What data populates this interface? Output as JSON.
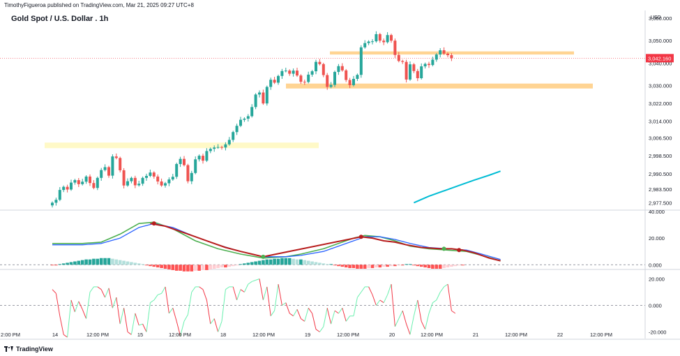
{
  "header": {
    "published": "TimothyFigueroa published on TradingView.com, Mar 21, 2025 09:27 UTC+8",
    "title": "Gold Spot / U.S. Dollar . 1h",
    "currency": "USD",
    "brand": "TradingView"
  },
  "colors": {
    "up": "#26a69a",
    "down": "#ef5350",
    "zone_orange": "#ffcc80",
    "zone_yellow": "#fff9c4",
    "ma_cyan": "#00bcd4",
    "dmi_green": "#4caf50",
    "dmi_blue": "#2962ff",
    "dmi_red": "#b71c1c",
    "osc_green": "#69f0ae",
    "osc_red": "#f23645",
    "price_tag": "#f23645"
  },
  "chart_data": [
    {
      "type": "candlestick",
      "ylim": [
        2974.5,
        3063.5
      ],
      "y_ticks": [
        "3,060.000",
        "3,050.000",
        "3,040.000",
        "3,030.000",
        "3,022.000",
        "3,014.000",
        "3,006.500",
        "2,998.500",
        "2,990.500",
        "2,983.500",
        "2,977.500"
      ],
      "last_price": "3,042.160",
      "x_ticks": [
        "2:00 PM",
        "14",
        "12:00 PM",
        "15",
        "12:00 PM",
        "18",
        "12:00 PM",
        "19",
        "12:00 PM",
        "20",
        "12:00 PM",
        "21",
        "12:00 PM",
        "22",
        "12:00 PM"
      ],
      "close": [
        2977.5,
        2978.8,
        2983.2,
        2984.6,
        2983.4,
        2986.5,
        2987.6,
        2985.8,
        2986.9,
        2989.2,
        2986.3,
        2984.1,
        2988.6,
        2992.1,
        2993.4,
        2989.6,
        2998.2,
        2997.5,
        2992.0,
        2985.2,
        2987.1,
        2988.6,
        2985.3,
        2986.0,
        2988.6,
        2989.5,
        2991.0,
        2989.2,
        2987.0,
        2985.2,
        2986.2,
        2987.9,
        2989.1,
        2994.8,
        2997.1,
        2994.3,
        2987.1,
        2990.8,
        2996.9,
        2998.5,
        2996.3,
        3000.6,
        3001.6,
        3002.2,
        3002.4,
        3002.2,
        3003.6,
        3005.6,
        3009.1,
        3011.9,
        3014.6,
        3015.1,
        3016.2,
        3020.3,
        3025.9,
        3026.8,
        3021.9,
        3029.3,
        3032.5,
        3031.2,
        3034.2,
        3036.4,
        3036.6,
        3035.2,
        3036.6,
        3034.4,
        3031.6,
        3031.5,
        3034.8,
        3036.3,
        3040.5,
        3039.5,
        3034.6,
        3029.3,
        3030.2,
        3036.0,
        3038.6,
        3036.7,
        3032.4,
        3030.1,
        3032.9,
        3034.7,
        3047.0,
        3048.9,
        3049.6,
        3049.7,
        3052.9,
        3050.0,
        3049.3,
        3052.5,
        3050.0,
        3043.6,
        3040.9,
        3040.5,
        3032.6,
        3039.4,
        3036.4,
        3033.2,
        3038.5,
        3039.6,
        3039.1,
        3041.5,
        3043.8,
        3045.7,
        3044.2,
        3043.5,
        3042.16
      ],
      "ma_line": [
        [
          96,
          2977.5
        ],
        [
          100,
          2980.4
        ],
        [
          104,
          2982.8
        ],
        [
          108,
          2985.2
        ],
        [
          112,
          2987.6
        ],
        [
          116,
          2989.8
        ],
        [
          119,
          2991.6
        ]
      ]
    },
    {
      "type": "line",
      "name_hint": "directional oscillator",
      "ylim": [
        -3,
        40
      ],
      "y_ticks": [
        "40.000",
        "20.000",
        "0.000"
      ],
      "series": [
        {
          "color": "#4caf50",
          "x": [
            0,
            8,
            13,
            18,
            23,
            27,
            32,
            38,
            44,
            50,
            56,
            62,
            66,
            72,
            76,
            80,
            83,
            87,
            91,
            95,
            100,
            105,
            110,
            114,
            119
          ],
          "values": [
            16,
            16,
            17,
            23,
            31,
            32,
            27,
            18,
            12,
            8,
            5,
            6,
            8,
            12,
            16,
            20,
            22,
            21,
            18,
            14,
            12,
            11,
            10,
            7,
            3
          ]
        },
        {
          "color": "#2962ff",
          "x": [
            0,
            8,
            13,
            18,
            23,
            27,
            32,
            38,
            44,
            50,
            56,
            62,
            66,
            72,
            76,
            80,
            83,
            87,
            91,
            95,
            100,
            105,
            110,
            114,
            119
          ],
          "values": [
            15,
            15,
            16,
            20,
            28,
            31,
            28,
            21,
            15,
            10,
            6,
            6,
            7,
            10,
            14,
            18,
            21,
            21,
            19,
            16,
            13,
            12,
            11,
            8,
            4
          ]
        },
        {
          "color": "#b71c1c",
          "x": [
            26,
            30,
            34,
            38,
            42,
            46,
            50,
            53,
            56,
            82,
            85,
            88,
            91,
            94,
            98,
            103,
            106,
            109,
            112,
            116,
            119
          ],
          "values": [
            31,
            29,
            25,
            21,
            17,
            13,
            10,
            8,
            6,
            21,
            20,
            18,
            17,
            15,
            13,
            12,
            12,
            11,
            9,
            5,
            3
          ]
        }
      ],
      "markers": [
        [
          27,
          31,
          "#b71c1c"
        ],
        [
          56,
          6,
          "#4caf50"
        ],
        [
          82,
          21,
          "#b71c1c"
        ],
        [
          104,
          12,
          "#4caf50"
        ],
        [
          108,
          11,
          "#b71c1c"
        ]
      ],
      "histogram": [
        -0.5,
        -0.5,
        0.5,
        1,
        1.5,
        2,
        2.5,
        3,
        3.5,
        4,
        4,
        4.5,
        4.5,
        5,
        5,
        5,
        4.5,
        4,
        3.5,
        3,
        2.5,
        2,
        1.5,
        1,
        0.5,
        -0.5,
        -1,
        -1.5,
        -2,
        -2.5,
        -3,
        -3.5,
        -4,
        -4.5,
        -4.5,
        -5,
        -5,
        -5,
        -4.5,
        -4.5,
        -4,
        -4,
        -3.5,
        -3,
        -2.5,
        -2,
        -2,
        -1.5,
        -1,
        -0.5,
        0.5,
        1,
        1.5,
        2,
        2.5,
        3,
        3.5,
        4,
        4,
        4.5,
        4.5,
        5,
        5,
        5,
        4.5,
        4,
        4,
        3.5,
        3,
        2.5,
        2,
        1.5,
        1,
        0.5,
        0.5,
        -0.5,
        -1,
        -1.5,
        -2,
        -2.5,
        -2.5,
        -3,
        -3,
        -3,
        -2.5,
        -2.5,
        -2,
        -2,
        -1.5,
        -1.5,
        -1,
        -1,
        -0.5,
        -0.5,
        0.5,
        0.5,
        -0.5,
        -1,
        -1.5,
        -2,
        -2.5,
        -3,
        -3,
        -3,
        -2.5,
        -2,
        -1.5,
        -1,
        -0.5,
        -0.5
      ]
    },
    {
      "type": "line",
      "ylim": [
        -25,
        25
      ],
      "y_ticks": [
        "20.000",
        "0.000",
        "-20.000"
      ],
      "values": [
        12,
        9,
        -8,
        -22,
        -24,
        4,
        -5,
        3,
        -3,
        -10,
        10,
        14,
        14,
        12,
        6,
        13,
        -2,
        6,
        -14,
        -2,
        -20,
        -22,
        -6,
        -15,
        -14,
        -20,
        2,
        4,
        8,
        9,
        14,
        -6,
        -2,
        -12,
        -23,
        -12,
        -7,
        10,
        14,
        14,
        12,
        4,
        -14,
        -10,
        -20,
        -12,
        12,
        14,
        14,
        4,
        12,
        10,
        16,
        18,
        19,
        20,
        4,
        14,
        -8,
        -4,
        16,
        0,
        2,
        -6,
        -8,
        -3,
        -10,
        -12,
        -2,
        -6,
        -18,
        -20,
        -16,
        -2,
        -14,
        -4,
        -6,
        -2,
        -12,
        -8,
        -8,
        6,
        10,
        14,
        14,
        8,
        0,
        4,
        2,
        8,
        16,
        -16,
        -10,
        -4,
        -14,
        -22,
        -8,
        4,
        -12,
        -18,
        -6,
        2,
        4,
        10,
        14,
        16,
        -4,
        -6
      ]
    }
  ]
}
